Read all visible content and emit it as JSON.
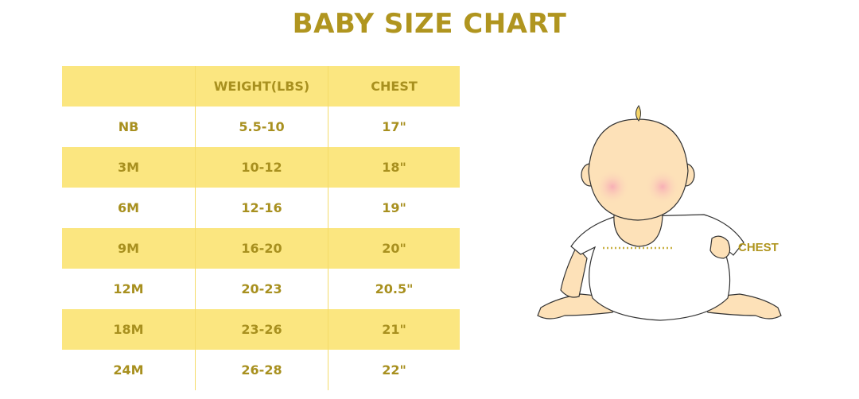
{
  "title": "BABY SIZE CHART",
  "table": {
    "headers": [
      "",
      "WEIGHT(LBS)",
      "CHEST"
    ],
    "rows": [
      [
        "NB",
        "5.5-10",
        "17\""
      ],
      [
        "3M",
        "10-12",
        "18\""
      ],
      [
        "6M",
        "12-16",
        "19\""
      ],
      [
        "9M",
        "16-20",
        "20\""
      ],
      [
        "12M",
        "20-23",
        "20.5\""
      ],
      [
        "18M",
        "23-26",
        "21\""
      ],
      [
        "24M",
        "26-28",
        "22\""
      ]
    ]
  },
  "illustration": {
    "chest_label": "CHEST"
  },
  "colors": {
    "accent_text": "#b0951f",
    "row_highlight": "#fbe680",
    "skin": "#fde1b8",
    "cheek": "#f7a9b6"
  }
}
